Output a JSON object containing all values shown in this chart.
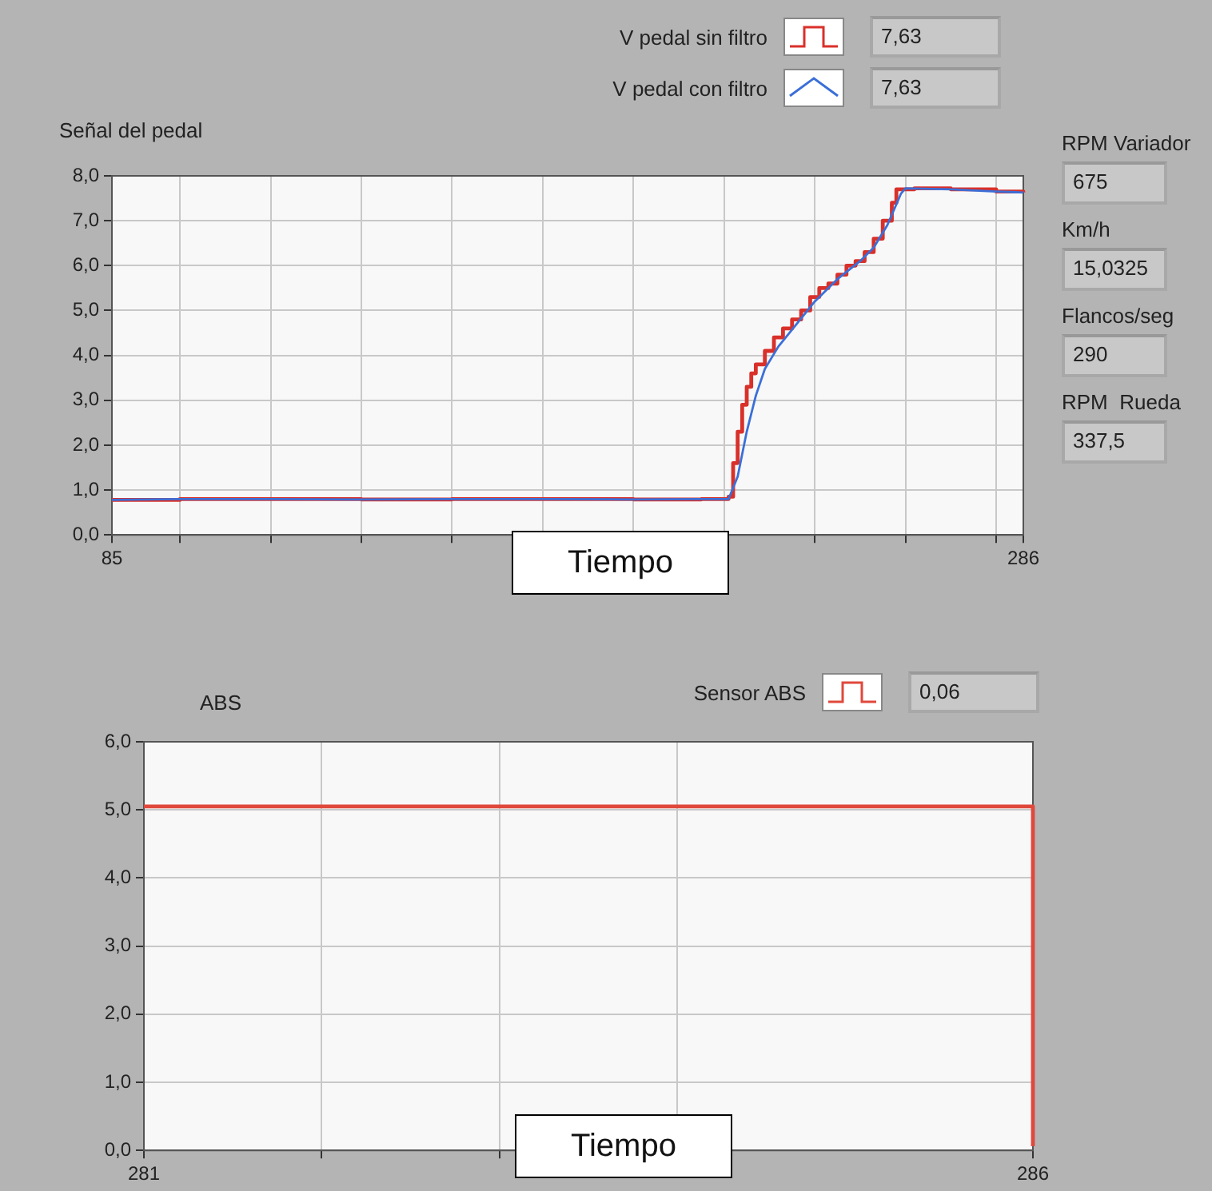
{
  "chart_data": [
    {
      "type": "line",
      "ylabel": "Señal del pedal",
      "xlabel": "Tiempo",
      "legend": "top right",
      "grid": true,
      "xlim": [
        85,
        286
      ],
      "xticks": [
        85,
        {
          "value": 100,
          "label": null
        },
        {
          "value": 120,
          "label": null
        },
        {
          "value": 140,
          "label": null
        },
        {
          "value": 160,
          "label": null
        },
        {
          "value": 180,
          "label": null
        },
        {
          "value": 200,
          "label": null
        },
        {
          "value": 220,
          "label": null
        },
        {
          "value": 240,
          "label": null
        },
        {
          "value": 260,
          "label": null
        },
        {
          "value": 280,
          "label": null
        },
        286
      ],
      "ylim": [
        0,
        8
      ],
      "yticks": [
        {
          "value": 0,
          "label": "0,0"
        },
        {
          "value": 1,
          "label": "1,0"
        },
        {
          "value": 2,
          "label": "2,0"
        },
        {
          "value": 3,
          "label": "3,0"
        },
        {
          "value": 4,
          "label": "4,0"
        },
        {
          "value": 5,
          "label": "5,0"
        },
        {
          "value": 6,
          "label": "6,0"
        },
        {
          "value": 7,
          "label": "7,0"
        },
        {
          "value": 8,
          "label": "8,0"
        }
      ],
      "series": [
        {
          "name": "V pedal sin filtro",
          "type": "step",
          "color": "#d9302a",
          "x": [
            85,
            100,
            120,
            140,
            160,
            180,
            200,
            215,
            221,
            222,
            223,
            224,
            225,
            226,
            227,
            229,
            231,
            233,
            235,
            237,
            239,
            241,
            243,
            245,
            247,
            249,
            251,
            253,
            255,
            257,
            258,
            262,
            270,
            280,
            286
          ],
          "values": [
            0.78,
            0.8,
            0.8,
            0.79,
            0.8,
            0.8,
            0.79,
            0.8,
            0.85,
            1.6,
            2.3,
            2.9,
            3.3,
            3.6,
            3.8,
            4.1,
            4.4,
            4.6,
            4.8,
            5.0,
            5.3,
            5.5,
            5.6,
            5.8,
            6.0,
            6.1,
            6.3,
            6.6,
            7.0,
            7.4,
            7.7,
            7.72,
            7.7,
            7.65,
            7.63
          ]
        },
        {
          "name": "V pedal con filtro",
          "type": "line",
          "color": "#3b6fd8",
          "x": [
            85,
            100,
            120,
            140,
            160,
            180,
            200,
            215,
            221,
            223,
            225,
            227,
            229,
            232,
            236,
            240,
            245,
            250,
            253,
            256,
            259,
            260,
            270,
            280,
            286
          ],
          "values": [
            0.78,
            0.8,
            0.8,
            0.79,
            0.8,
            0.8,
            0.79,
            0.8,
            0.8,
            1.3,
            2.3,
            3.1,
            3.7,
            4.2,
            4.7,
            5.2,
            5.7,
            6.1,
            6.4,
            6.9,
            7.6,
            7.72,
            7.7,
            7.65,
            7.63
          ]
        }
      ],
      "annotations": [
        "7,63",
        "7,63",
        "RPM Variador",
        "675",
        "Km/h",
        "15,0325",
        "Flancos/seg",
        "290",
        "RPM  Rueda",
        "337,5"
      ]
    },
    {
      "type": "step",
      "ylabel": "ABS",
      "xlabel": "Tiempo",
      "legend": "top right",
      "grid": true,
      "xlim": [
        281,
        286
      ],
      "xticks": [
        281,
        {
          "value": 282,
          "label": null
        },
        {
          "value": 283,
          "label": null
        },
        {
          "value": 284,
          "label": null
        },
        286
      ],
      "ylim": [
        0,
        6
      ],
      "yticks": [
        {
          "value": 0,
          "label": "0,0"
        },
        {
          "value": 1,
          "label": "1,0"
        },
        {
          "value": 2,
          "label": "2,0"
        },
        {
          "value": 3,
          "label": "3,0"
        },
        {
          "value": 4,
          "label": "4,0"
        },
        {
          "value": 5,
          "label": "5,0"
        },
        {
          "value": 6,
          "label": "6,0"
        }
      ],
      "series": [
        {
          "name": "Sensor ABS",
          "color": "#e0483c",
          "x": [
            281,
            282,
            283,
            284,
            285,
            286
          ],
          "values": [
            5.05,
            5.05,
            5.05,
            5.05,
            5.05,
            0.06
          ]
        }
      ],
      "annotations": [
        "0,06"
      ]
    }
  ]
}
